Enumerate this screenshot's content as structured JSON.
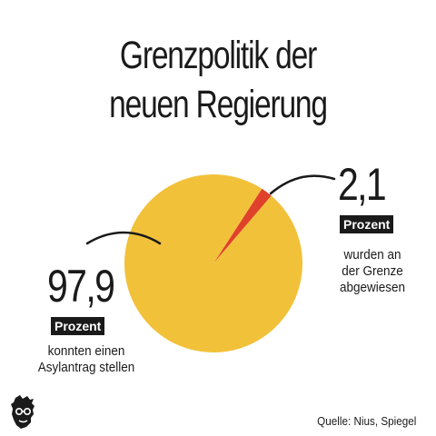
{
  "title": {
    "line1": "Grenzpolitik der",
    "line2": "neuen Regierung"
  },
  "chart_data": {
    "type": "pie",
    "title": "Grenzpolitik der neuen Regierung",
    "slices": [
      {
        "value_label": "2,1",
        "value": 2.1,
        "unit": "Prozent",
        "label": "wurden an der Grenze abgewiesen",
        "label_lines": [
          "wurden an",
          "der Grenze",
          "abgewiesen"
        ],
        "color": "#e0412a"
      },
      {
        "value_label": "97,9",
        "value": 97.9,
        "unit": "Prozent",
        "label": "konnten einen Asylantrag stellen",
        "label_lines": [
          "konnten einen",
          "Asylantrag stellen"
        ],
        "color": "#f2c13a"
      }
    ]
  },
  "source": "Quelle: Nius, Spiegel",
  "logo_icon": "face-silhouette-icon"
}
